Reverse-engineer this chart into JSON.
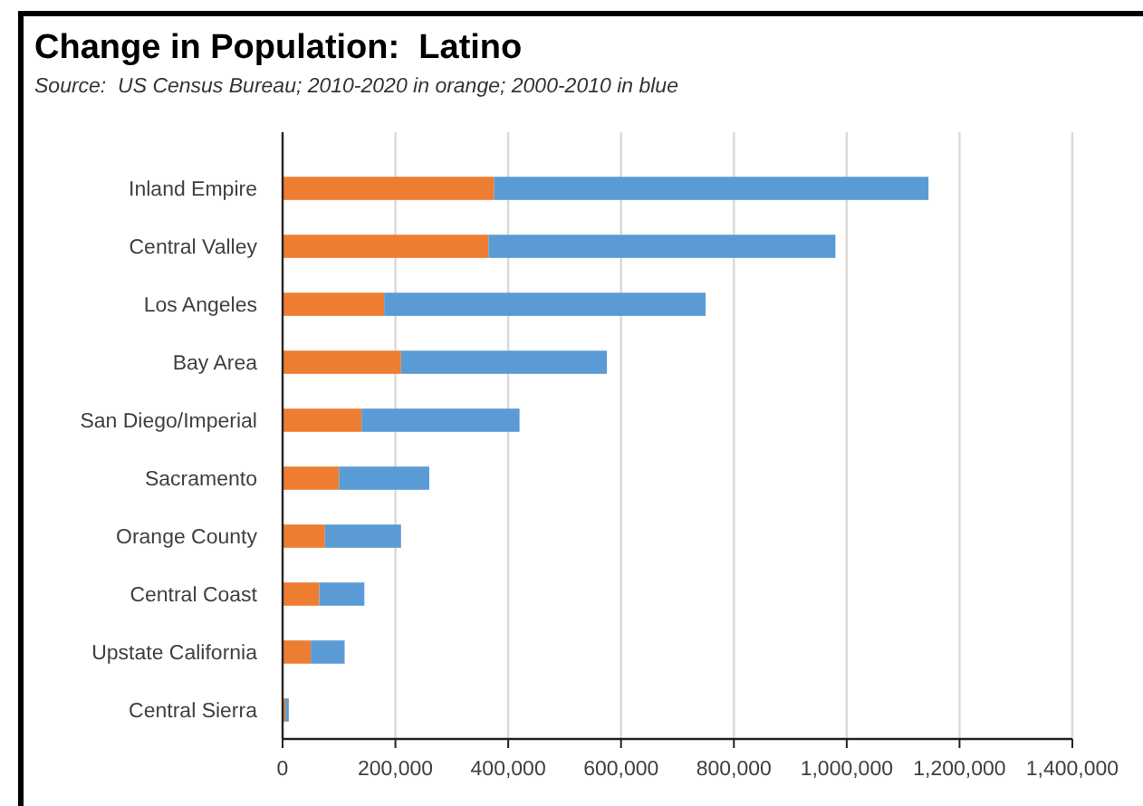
{
  "chart_data": {
    "type": "bar",
    "orientation": "horizontal",
    "stacked": true,
    "title": "Change in Population:  Latino",
    "subtitle": "Source:  US Census Bureau; 2010-2020 in orange; 2000-2010 in blue",
    "categories": [
      "Inland Empire",
      "Central Valley",
      "Los Angeles",
      "Bay Area",
      "San Diego/Imperial",
      "Sacramento",
      "Orange County",
      "Central Coast",
      "Upstate California",
      "Central Sierra"
    ],
    "series": [
      {
        "color": "#ed7d31",
        "values": [
          375000,
          365000,
          180000,
          210000,
          140000,
          100000,
          75000,
          65000,
          50000,
          5000
        ]
      },
      {
        "color": "#5b9bd5",
        "values": [
          770000,
          615000,
          570000,
          365000,
          280000,
          160000,
          135000,
          80000,
          60000,
          6000
        ]
      }
    ],
    "xlim": [
      0,
      1400000
    ],
    "xticks": [
      {
        "value": 0,
        "label": "0"
      },
      {
        "value": 200000,
        "label": "200,000"
      },
      {
        "value": 400000,
        "label": "400,000"
      },
      {
        "value": 600000,
        "label": "600,000"
      },
      {
        "value": 800000,
        "label": "800,000"
      },
      {
        "value": 1000000,
        "label": "1,000,000"
      },
      {
        "value": 1200000,
        "label": "1,200,000"
      },
      {
        "value": 1400000,
        "label": "1,400,000"
      }
    ],
    "grid": "x"
  }
}
